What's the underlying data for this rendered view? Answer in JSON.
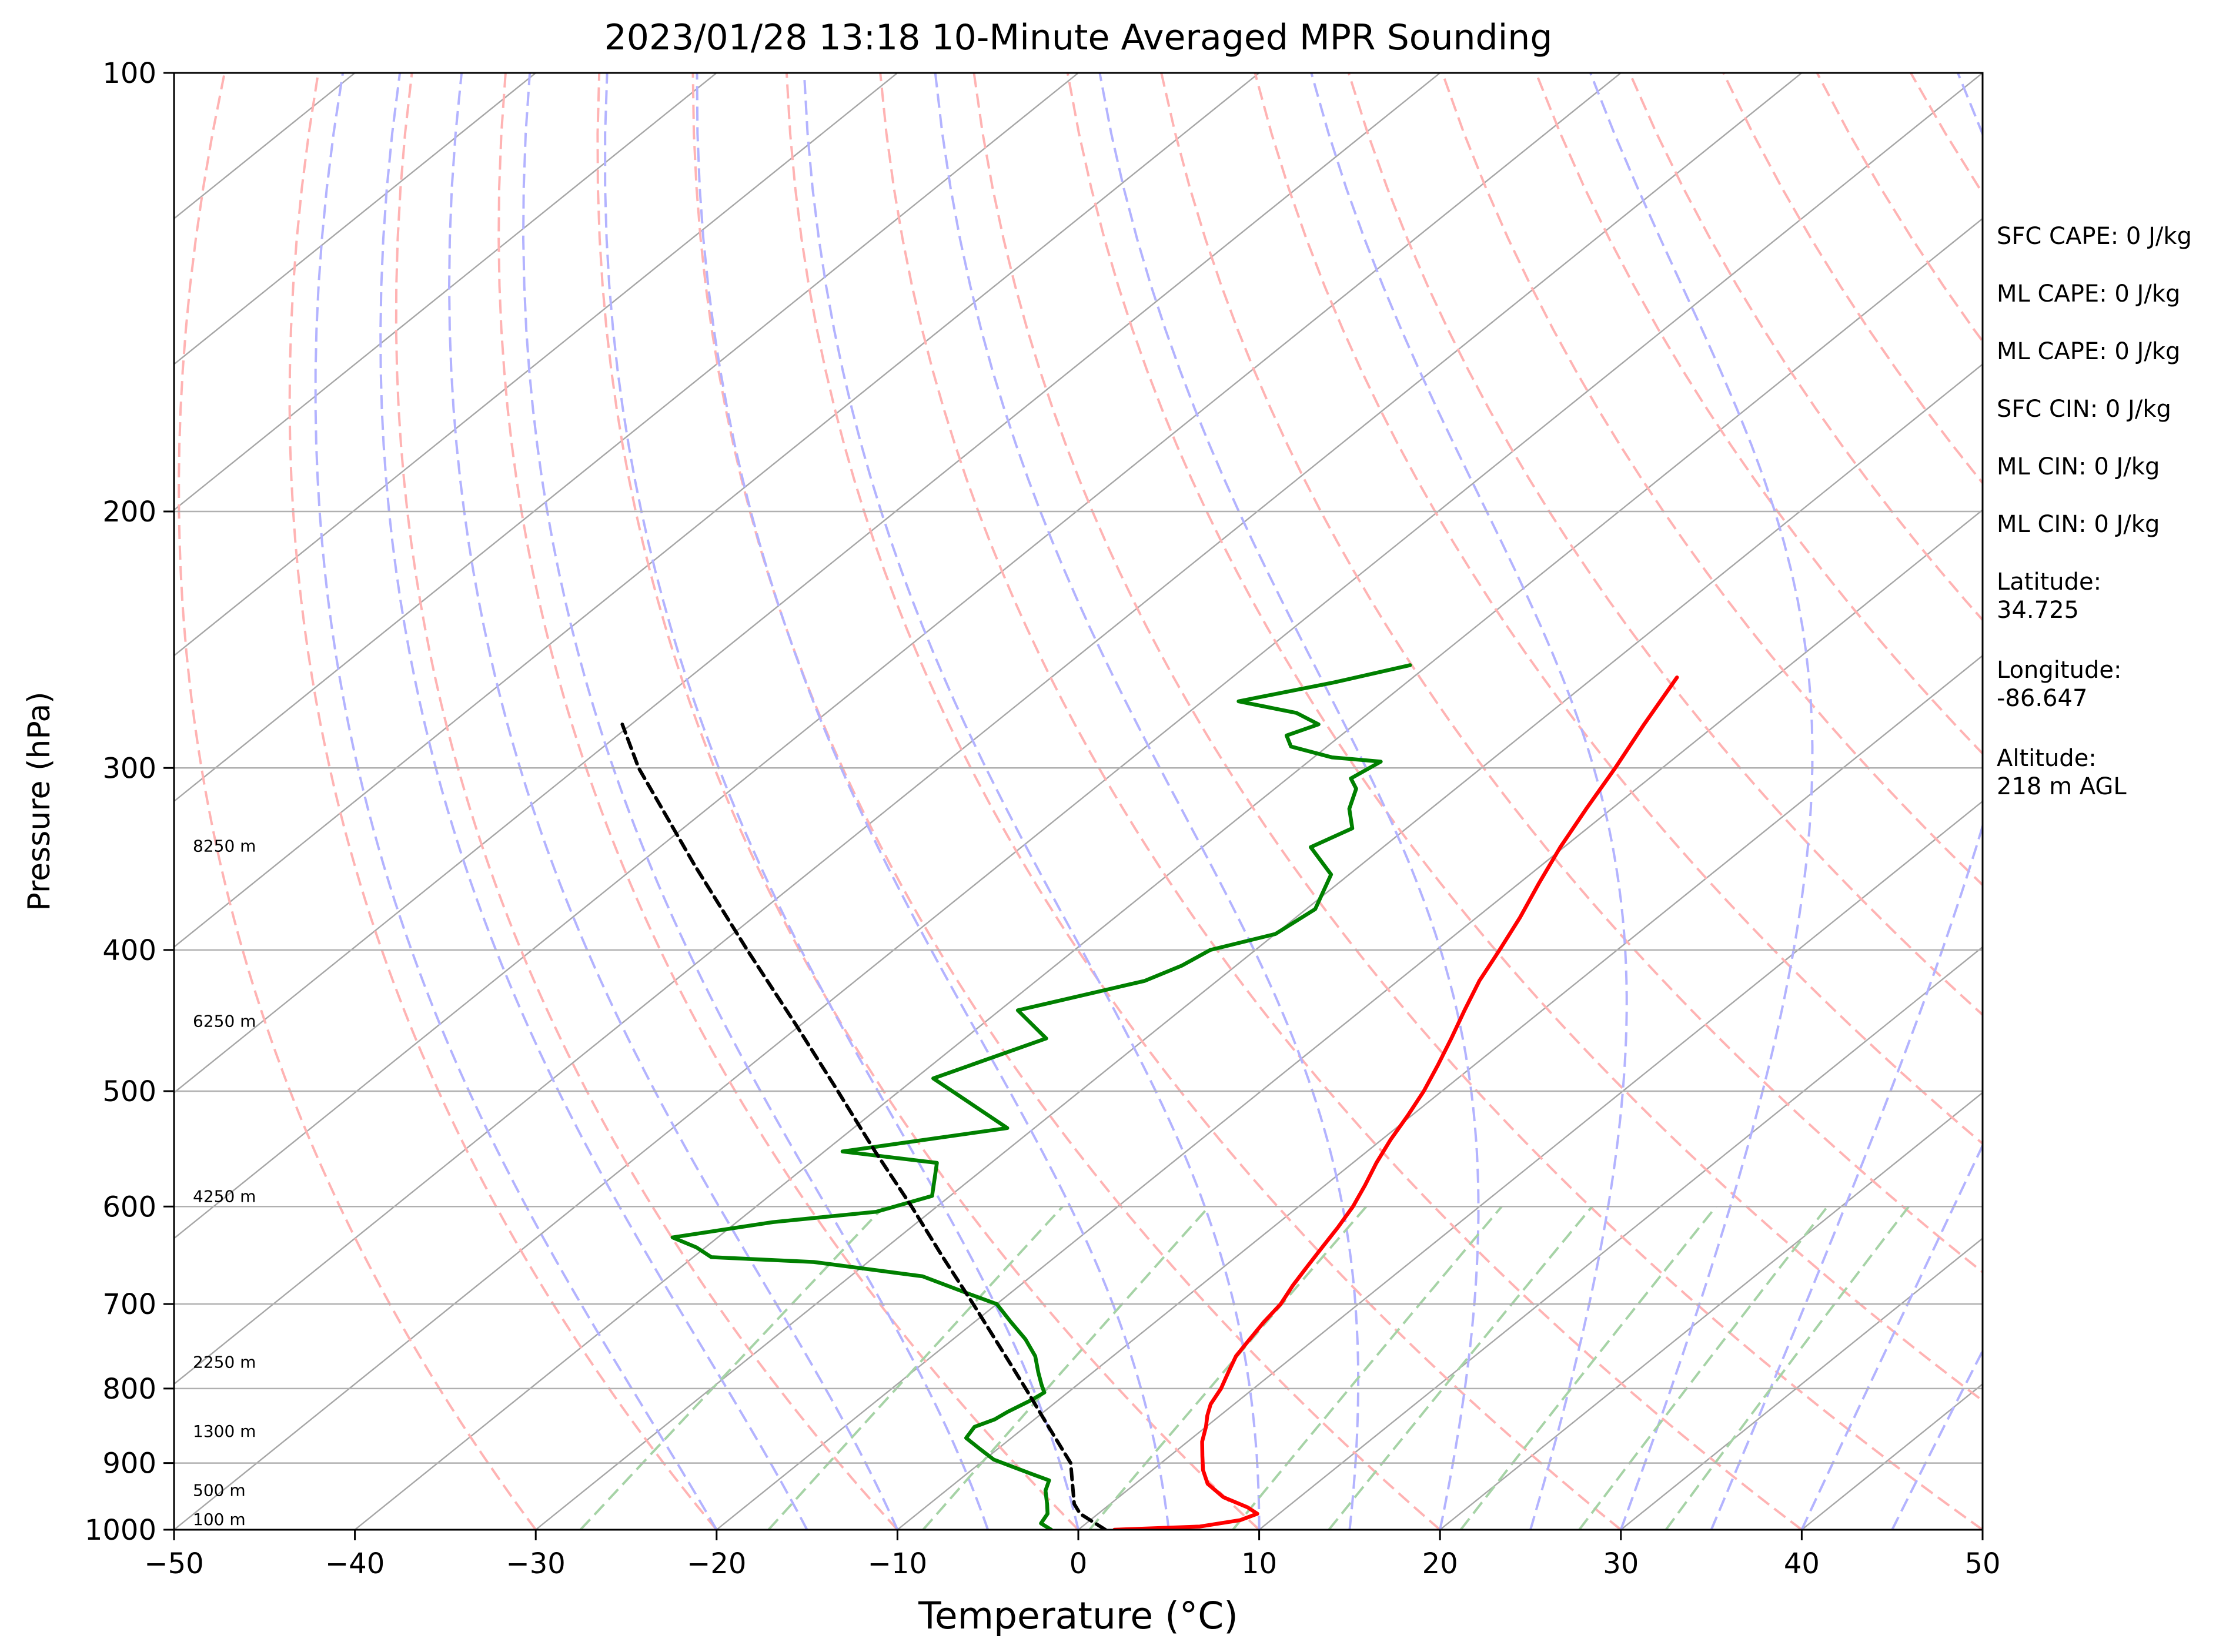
{
  "chart_data": {
    "type": "line",
    "subtype": "skew-t log-p",
    "title": "2023/01/28 13:18 10-Minute Averaged MPR Sounding",
    "xlabel": "Temperature (°C)",
    "ylabel": "Pressure (hPa)",
    "xlim": [
      -50,
      50
    ],
    "ylim": [
      1000,
      100
    ],
    "y_scale": "log",
    "grid": true,
    "x_ticks": [
      "−50",
      "−40",
      "−30",
      "−20",
      "−10",
      "0",
      "10",
      "20",
      "30",
      "40",
      "50"
    ],
    "y_ticks": [
      "100",
      "200",
      "300",
      "400",
      "500",
      "600",
      "700",
      "800",
      "900",
      "1000"
    ],
    "colors": {
      "temperature": "#ff0000",
      "dewpoint": "#008000",
      "parcel": "#000000",
      "isotherm": "#a6a6a6",
      "dry_adiabat": "#ffb3b3",
      "moist_adiabat": "#b3b3ff",
      "mixing_ratio": "#a6d3a6"
    },
    "series": [
      {
        "role": "temperature",
        "points": [
          [
            1000,
            2.0
          ],
          [
            995,
            6.5
          ],
          [
            985,
            8.3
          ],
          [
            975,
            8.8
          ],
          [
            965,
            7.8
          ],
          [
            950,
            5.8
          ],
          [
            930,
            4.0
          ],
          [
            910,
            2.8
          ],
          [
            890,
            1.8
          ],
          [
            870,
            0.8
          ],
          [
            850,
            0.0
          ],
          [
            835,
            -0.7
          ],
          [
            820,
            -1.3
          ],
          [
            800,
            -1.8
          ],
          [
            780,
            -2.5
          ],
          [
            760,
            -3.2
          ],
          [
            740,
            -3.6
          ],
          [
            720,
            -4.0
          ],
          [
            700,
            -4.3
          ],
          [
            680,
            -4.9
          ],
          [
            660,
            -5.4
          ],
          [
            640,
            -5.9
          ],
          [
            620,
            -6.4
          ],
          [
            600,
            -7.0
          ],
          [
            580,
            -7.8
          ],
          [
            560,
            -8.7
          ],
          [
            540,
            -9.5
          ],
          [
            520,
            -10.2
          ],
          [
            500,
            -11.0
          ],
          [
            480,
            -12.0
          ],
          [
            460,
            -13.1
          ],
          [
            440,
            -14.3
          ],
          [
            420,
            -15.5
          ],
          [
            400,
            -16.5
          ],
          [
            380,
            -17.6
          ],
          [
            360,
            -18.9
          ],
          [
            340,
            -20.2
          ],
          [
            320,
            -21.4
          ],
          [
            300,
            -22.6
          ],
          [
            280,
            -24.0
          ],
          [
            260,
            -25.4
          ]
        ]
      },
      {
        "role": "dewpoint",
        "points": [
          [
            1000,
            -1.5
          ],
          [
            990,
            -2.5
          ],
          [
            975,
            -2.8
          ],
          [
            960,
            -3.5
          ],
          [
            950,
            -4.0
          ],
          [
            940,
            -4.5
          ],
          [
            925,
            -5.0
          ],
          [
            915,
            -6.5
          ],
          [
            905,
            -8.0
          ],
          [
            895,
            -9.5
          ],
          [
            880,
            -11.0
          ],
          [
            865,
            -12.5
          ],
          [
            850,
            -12.8
          ],
          [
            840,
            -12.2
          ],
          [
            830,
            -12.0
          ],
          [
            815,
            -11.5
          ],
          [
            805,
            -11.3
          ],
          [
            795,
            -12.0
          ],
          [
            780,
            -13.0
          ],
          [
            760,
            -14.3
          ],
          [
            740,
            -16.0
          ],
          [
            720,
            -18.0
          ],
          [
            700,
            -20.0
          ],
          [
            690,
            -22.0
          ],
          [
            670,
            -26.0
          ],
          [
            655,
            -33.0
          ],
          [
            650,
            -39.0
          ],
          [
            640,
            -40.5
          ],
          [
            630,
            -42.5
          ],
          [
            615,
            -38.0
          ],
          [
            605,
            -33.0
          ],
          [
            590,
            -31.0
          ],
          [
            560,
            -33.0
          ],
          [
            550,
            -39.0
          ],
          [
            530,
            -31.5
          ],
          [
            490,
            -39.0
          ],
          [
            460,
            -35.5
          ],
          [
            440,
            -39.0
          ],
          [
            420,
            -34.0
          ],
          [
            410,
            -33.0
          ],
          [
            400,
            -32.5
          ],
          [
            390,
            -30.0
          ],
          [
            375,
            -29.5
          ],
          [
            355,
            -31.0
          ],
          [
            340,
            -34.0
          ],
          [
            330,
            -33.0
          ],
          [
            320,
            -34.5
          ],
          [
            310,
            -35.5
          ],
          [
            305,
            -36.5
          ],
          [
            297,
            -36.0
          ],
          [
            295,
            -39.0
          ],
          [
            290,
            -42.0
          ],
          [
            285,
            -43.0
          ],
          [
            280,
            -42.0
          ],
          [
            275,
            -44.0
          ],
          [
            270,
            -48.0
          ],
          [
            262,
            -44.0
          ],
          [
            255,
            -41.0
          ]
        ]
      },
      {
        "role": "parcel",
        "points": [
          [
            1000,
            1.5
          ],
          [
            975,
            -1.0
          ],
          [
            960,
            -2.0
          ],
          [
            900,
            -5.0
          ],
          [
            850,
            -8.7
          ],
          [
            800,
            -12.6
          ],
          [
            750,
            -16.8
          ],
          [
            700,
            -21.3
          ],
          [
            650,
            -26.2
          ],
          [
            600,
            -31.4
          ],
          [
            550,
            -37.2
          ],
          [
            500,
            -43.4
          ],
          [
            450,
            -50.3
          ],
          [
            400,
            -58.1
          ],
          [
            350,
            -66.8
          ],
          [
            300,
            -76.6
          ],
          [
            280,
            -80.5
          ]
        ]
      }
    ],
    "height_labels": [
      {
        "p": 1000,
        "text": "100 m"
      },
      {
        "p": 955,
        "text": "500 m"
      },
      {
        "p": 870,
        "text": "1300 m"
      },
      {
        "p": 780,
        "text": "2250 m"
      },
      {
        "p": 600,
        "text": "4250 m"
      },
      {
        "p": 455,
        "text": "6250 m"
      },
      {
        "p": 345,
        "text": "8250 m"
      }
    ]
  },
  "sidebar": {
    "stats": [
      [
        "SFC CAPE: 0 J/kg"
      ],
      [
        "ML CAPE: 0 J/kg"
      ],
      [
        "ML CAPE: 0 J/kg"
      ],
      [
        "SFC CIN: 0 J/kg"
      ],
      [
        "ML CIN: 0 J/kg"
      ],
      [
        "ML CIN: 0 J/kg"
      ],
      [
        "Latitude:",
        "34.725"
      ],
      [
        "Longitude:",
        "-86.647"
      ],
      [
        "Altitude:",
        "218 m AGL"
      ]
    ]
  }
}
